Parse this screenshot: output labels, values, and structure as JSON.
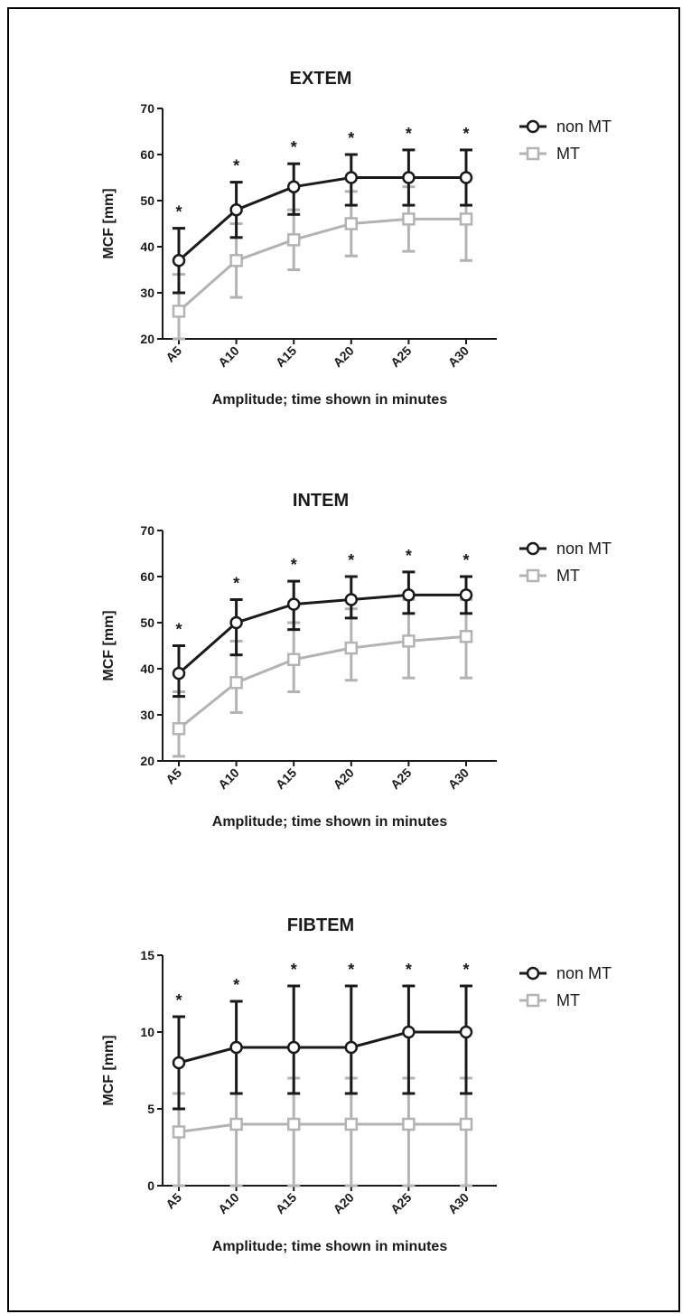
{
  "series_colors": {
    "non MT": "#1a1a1a",
    "MT": "#b3b3b3"
  },
  "chart_data": [
    {
      "type": "line",
      "title": "EXTEM",
      "xlabel": "Amplitude; time shown in minutes",
      "ylabel": "MCF [mm]",
      "ylim": [
        20,
        70
      ],
      "yticks": [
        20,
        30,
        40,
        50,
        60,
        70
      ],
      "categories": [
        "A5",
        "A10",
        "A15",
        "A20",
        "A25",
        "A30"
      ],
      "series": [
        {
          "name": "non MT",
          "marker": "circle",
          "values": [
            37,
            48,
            53,
            55,
            55,
            55
          ],
          "error_low": [
            30,
            42,
            47,
            49,
            49,
            49
          ],
          "error_high": [
            44,
            54,
            58,
            60,
            61,
            61
          ]
        },
        {
          "name": "MT",
          "marker": "square",
          "values": [
            26,
            37,
            41.5,
            45,
            46,
            46
          ],
          "error_low": [
            20,
            29,
            35,
            38,
            39,
            37
          ],
          "error_high": [
            34,
            45,
            48,
            52,
            53,
            55
          ]
        }
      ],
      "annotations": [
        "*",
        "*",
        "*",
        "*",
        "*",
        "*"
      ],
      "legend": [
        "non MT",
        "MT"
      ],
      "legend_position": "top-right"
    },
    {
      "type": "line",
      "title": "INTEM",
      "xlabel": "Amplitude; time shown in minutes",
      "ylabel": "MCF [mm]",
      "ylim": [
        20,
        70
      ],
      "yticks": [
        20,
        30,
        40,
        50,
        60,
        70
      ],
      "categories": [
        "A5",
        "A10",
        "A15",
        "A20",
        "A25",
        "A30"
      ],
      "series": [
        {
          "name": "non MT",
          "marker": "circle",
          "values": [
            39,
            50,
            54,
            55,
            56,
            56
          ],
          "error_low": [
            34,
            43,
            48.5,
            51,
            52,
            52
          ],
          "error_high": [
            45,
            55,
            59,
            60,
            61,
            60
          ]
        },
        {
          "name": "MT",
          "marker": "square",
          "values": [
            27,
            37,
            42,
            44.5,
            46,
            47
          ],
          "error_low": [
            21,
            30.5,
            35,
            37.5,
            38,
            38
          ],
          "error_high": [
            35,
            46,
            50,
            53,
            55,
            55
          ]
        }
      ],
      "annotations": [
        "*",
        "*",
        "*",
        "*",
        "*",
        "*"
      ],
      "legend": [
        "non MT",
        "MT"
      ],
      "legend_position": "top-right"
    },
    {
      "type": "line",
      "title": "FIBTEM",
      "xlabel": "Amplitude; time shown in minutes",
      "ylabel": "MCF [mm]",
      "ylim": [
        0,
        15
      ],
      "yticks": [
        0,
        5,
        10,
        15
      ],
      "categories": [
        "A5",
        "A10",
        "A15",
        "A20",
        "A25",
        "A30"
      ],
      "series": [
        {
          "name": "non MT",
          "marker": "circle",
          "values": [
            8,
            9,
            9,
            9,
            10,
            10
          ],
          "error_low": [
            5,
            6,
            6,
            6,
            6,
            6
          ],
          "error_high": [
            11,
            12,
            13,
            13,
            13,
            13
          ]
        },
        {
          "name": "MT",
          "marker": "square",
          "values": [
            3.5,
            4,
            4,
            4,
            4,
            4
          ],
          "error_low": [
            0,
            0,
            0,
            0,
            0,
            0
          ],
          "error_high": [
            6,
            6,
            7,
            7,
            7,
            7
          ]
        }
      ],
      "annotations": [
        "*",
        "*",
        "*",
        "*",
        "*",
        "*"
      ],
      "legend": [
        "non MT",
        "MT"
      ],
      "legend_position": "top-right"
    }
  ]
}
